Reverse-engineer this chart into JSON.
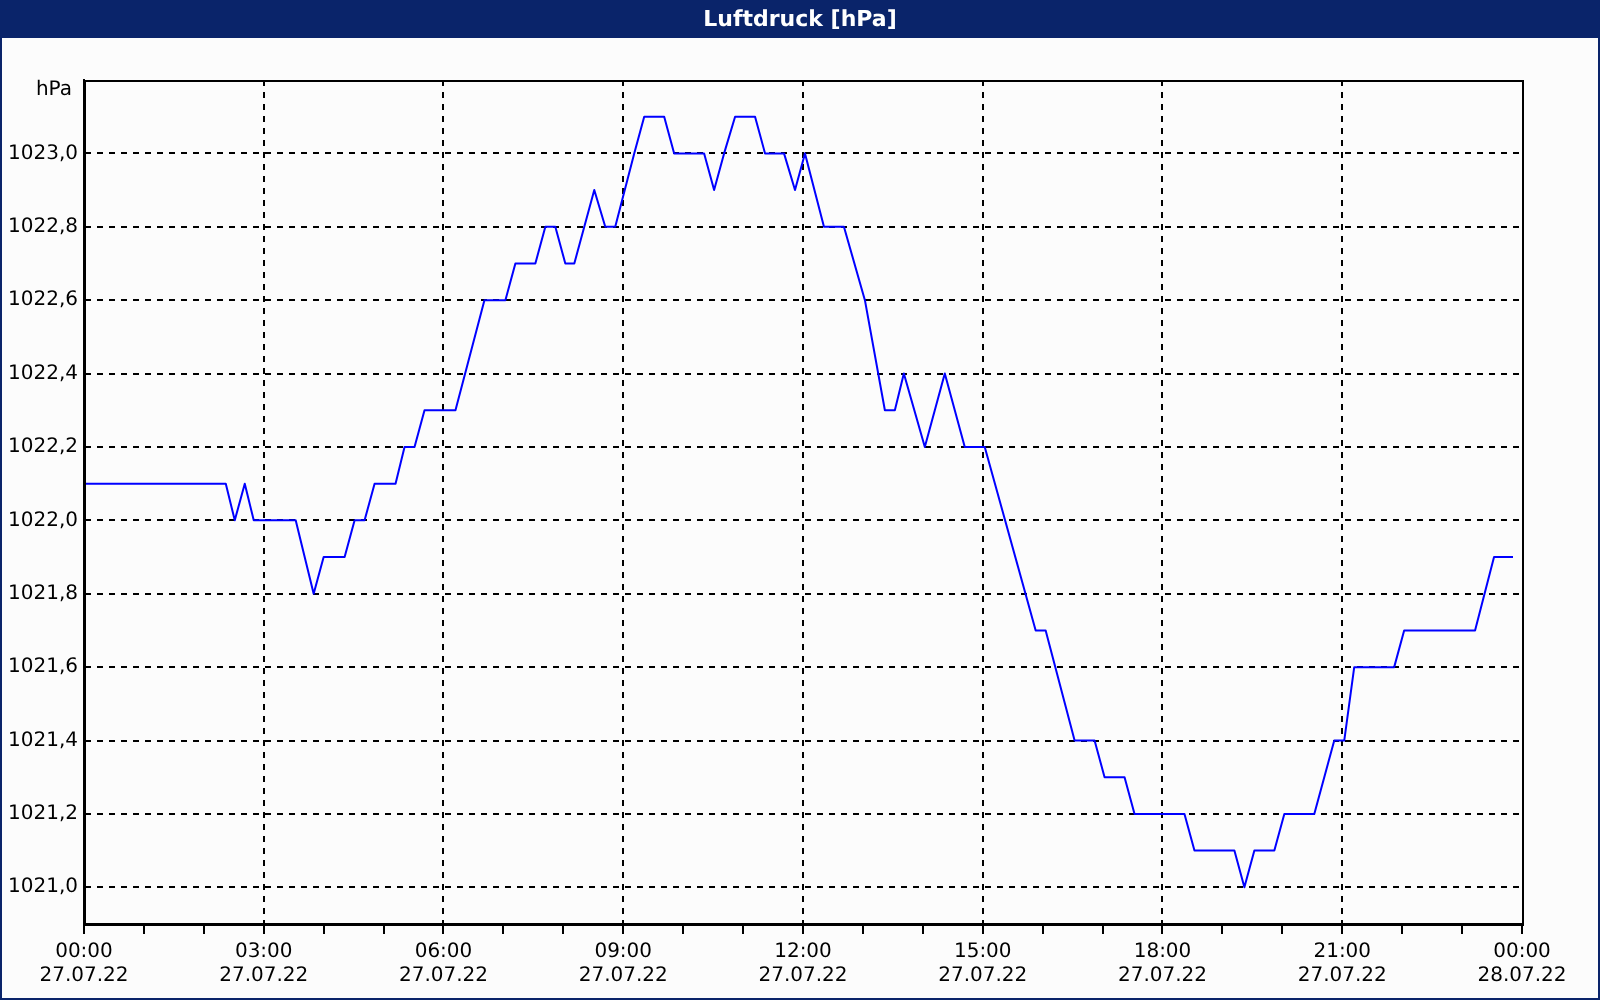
{
  "chart_data": {
    "type": "line",
    "title": "Luftdruck [hPa]",
    "ylabel": "hPa",
    "series": [
      {
        "color": "#0000ff",
        "x": [
          "--07-27T00:00",
          "--07-27T02:22",
          "--07-27T02:31",
          "--07-27T02:41",
          "--07-27T02:50",
          "--07-27T03:32",
          "--07-27T03:50",
          "--07-27T04:00",
          "--07-27T04:21",
          "--07-27T04:31",
          "--07-27T04:41",
          "--07-27T04:51",
          "--07-27T05:12",
          "--07-27T05:21",
          "--07-27T05:31",
          "--07-27T05:41",
          "--07-27T06:12",
          "--07-27T06:41",
          "--07-27T07:02",
          "--07-27T07:12",
          "--07-27T07:32",
          "--07-27T07:42",
          "--07-27T07:52",
          "--07-27T08:02",
          "--07-27T08:11",
          "--07-27T08:31",
          "--07-27T08:42",
          "--07-27T08:52",
          "--07-27T09:11",
          "--07-27T09:21",
          "--07-27T09:41",
          "--07-27T09:51",
          "--07-27T10:21",
          "--07-27T10:31",
          "--07-27T10:41",
          "--07-27T10:52",
          "--07-27T11:12",
          "--07-27T11:22",
          "--07-27T11:41",
          "--07-27T11:52",
          "--07-27T12:02",
          "--07-27T12:21",
          "--07-27T12:41",
          "--07-27T13:02",
          "--07-27T13:22",
          "--07-27T13:32",
          "--07-27T13:41",
          "--07-27T14:02",
          "--07-27T14:22",
          "--07-27T14:42",
          "--07-27T15:02",
          "--07-27T15:53",
          "--07-27T16:03",
          "--07-27T16:32",
          "--07-27T16:52",
          "--07-27T17:02",
          "--07-27T17:22",
          "--07-27T17:32",
          "--07-27T18:22",
          "--07-27T18:32",
          "--07-27T19:12",
          "--07-27T19:22",
          "--07-27T19:32",
          "--07-27T19:52",
          "--07-27T20:02",
          "--07-27T20:32",
          "--07-27T20:52",
          "--07-27T21:02",
          "--07-27T21:12",
          "--07-27T21:52",
          "--07-27T22:02",
          "--07-27T23:13",
          "--07-27T23:32",
          "--07-27T23:51"
        ],
        "values": [
          1022.1,
          1022.1,
          1022.0,
          1022.1,
          1022.0,
          1022.0,
          1021.8,
          1021.9,
          1021.9,
          1022.0,
          1022.0,
          1022.1,
          1022.1,
          1022.2,
          1022.2,
          1022.3,
          1022.3,
          1022.6,
          1022.6,
          1022.7,
          1022.7,
          1022.8,
          1022.8,
          1022.7,
          1022.7,
          1022.9,
          1022.8,
          1022.8,
          1023.0,
          1023.1,
          1023.1,
          1023.0,
          1023.0,
          1022.9,
          1023.0,
          1023.1,
          1023.1,
          1023.0,
          1023.0,
          1022.9,
          1023.0,
          1022.8,
          1022.8,
          1022.6,
          1022.3,
          1022.3,
          1022.4,
          1022.2,
          1022.4,
          1022.2,
          1022.2,
          1021.7,
          1021.7,
          1021.4,
          1021.4,
          1021.3,
          1021.3,
          1021.2,
          1021.2,
          1021.1,
          1021.1,
          1021.0,
          1021.1,
          1021.1,
          1021.2,
          1021.2,
          1021.4,
          1021.4,
          1021.6,
          1021.6,
          1021.7,
          1021.7,
          1021.9,
          1021.9
        ]
      }
    ],
    "xlim": [
      "--07-27T00:00",
      "--07-28T00:00"
    ],
    "xticks": [
      {
        "value": "--07-27T00:00",
        "label": "00:00\n27.07.22"
      },
      {
        "value": "--07-27T01:00",
        "label": null
      },
      {
        "value": "--07-27T02:00",
        "label": null
      },
      {
        "value": "--07-27T03:00",
        "label": "03:00\n27.07.22"
      },
      {
        "value": "--07-27T04:00",
        "label": null
      },
      {
        "value": "--07-27T05:00",
        "label": null
      },
      {
        "value": "--07-27T06:00",
        "label": "06:00\n27.07.22"
      },
      {
        "value": "--07-27T07:00",
        "label": null
      },
      {
        "value": "--07-27T08:00",
        "label": null
      },
      {
        "value": "--07-27T09:00",
        "label": "09:00\n27.07.22"
      },
      {
        "value": "--07-27T10:00",
        "label": null
      },
      {
        "value": "--07-27T11:00",
        "label": null
      },
      {
        "value": "--07-27T12:00",
        "label": "12:00\n27.07.22"
      },
      {
        "value": "--07-27T13:00",
        "label": null
      },
      {
        "value": "--07-27T14:00",
        "label": null
      },
      {
        "value": "--07-27T15:00",
        "label": "15:00\n27.07.22"
      },
      {
        "value": "--07-27T16:00",
        "label": null
      },
      {
        "value": "--07-27T17:00",
        "label": null
      },
      {
        "value": "--07-27T18:00",
        "label": "18:00\n27.07.22"
      },
      {
        "value": "--07-27T19:00",
        "label": null
      },
      {
        "value": "--07-27T20:00",
        "label": null
      },
      {
        "value": "--07-27T21:00",
        "label": "21:00\n27.07.22"
      },
      {
        "value": "--07-27T22:00",
        "label": null
      },
      {
        "value": "--07-27T23:00",
        "label": null
      },
      {
        "value": "--07-28T00:00",
        "label": "00:00\n28.07.22"
      }
    ],
    "ylim": [
      1020.9,
      1023.2
    ],
    "yticks": [
      {
        "value": 1021.0,
        "label": "1021,0"
      },
      {
        "value": 1021.2,
        "label": "1021,2"
      },
      {
        "value": 1021.4,
        "label": "1021,4"
      },
      {
        "value": 1021.6,
        "label": "1021,6"
      },
      {
        "value": 1021.8,
        "label": "1021,8"
      },
      {
        "value": 1022.0,
        "label": "1022,0"
      },
      {
        "value": 1022.2,
        "label": "1022,2"
      },
      {
        "value": 1022.4,
        "label": "1022,4"
      },
      {
        "value": 1022.6,
        "label": "1022,6"
      },
      {
        "value": 1022.8,
        "label": "1022,8"
      },
      {
        "value": 1023.0,
        "label": "1023,0"
      }
    ],
    "grid": true,
    "legend": false
  }
}
